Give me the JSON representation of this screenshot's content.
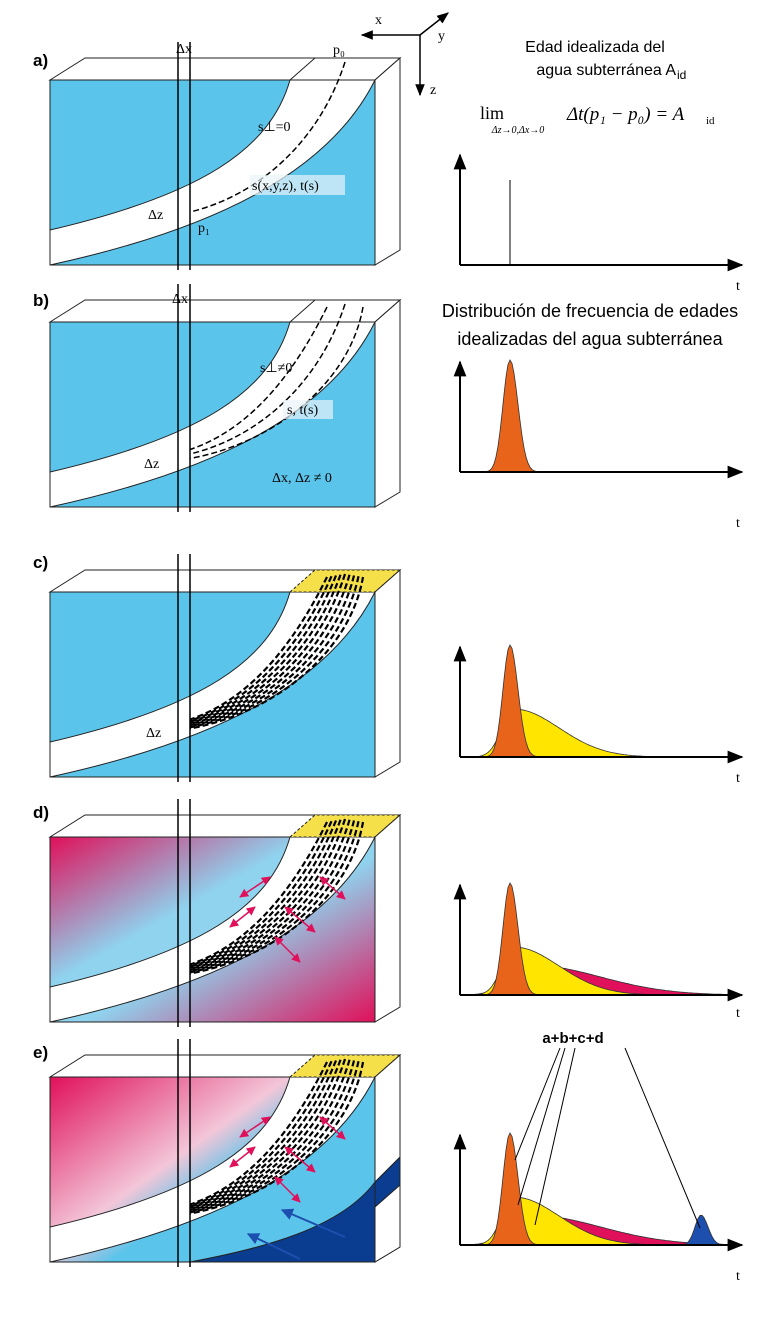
{
  "axes_legend": {
    "x": "x",
    "y": "y",
    "z": "z"
  },
  "heading_a": {
    "line1": "Edad idealizada del",
    "line2": "agua subterránea A",
    "line2_subscript": "id"
  },
  "formula": {
    "lim": "lim",
    "limit_condition": "Δz→0,Δx→0",
    "expression": "Δt(p₁ − p₀) = A",
    "expression_subscript": "id"
  },
  "heading_b": {
    "line1": "Distribución de frecuencia de edades",
    "line2": "idealizadas del agua subterránea"
  },
  "sum_label": "a+b+c+d",
  "panels": [
    {
      "label": "a)",
      "texts": [
        "Δx",
        "p₀",
        "s⊥=0",
        "s(x,y,z), t(s)",
        "Δz",
        "p₁"
      ],
      "t_label": "t"
    },
    {
      "label": "b)",
      "texts": [
        "Δx",
        "s⊥≠0",
        "s, t(s)",
        "Δz",
        "Δx, Δz ≠ 0"
      ],
      "t_label": "t"
    },
    {
      "label": "c)",
      "texts": [
        "Δz"
      ],
      "t_label": "t"
    },
    {
      "label": "d)",
      "texts": [],
      "t_label": "t"
    },
    {
      "label": "e)",
      "texts": [],
      "t_label": "t"
    }
  ]
}
